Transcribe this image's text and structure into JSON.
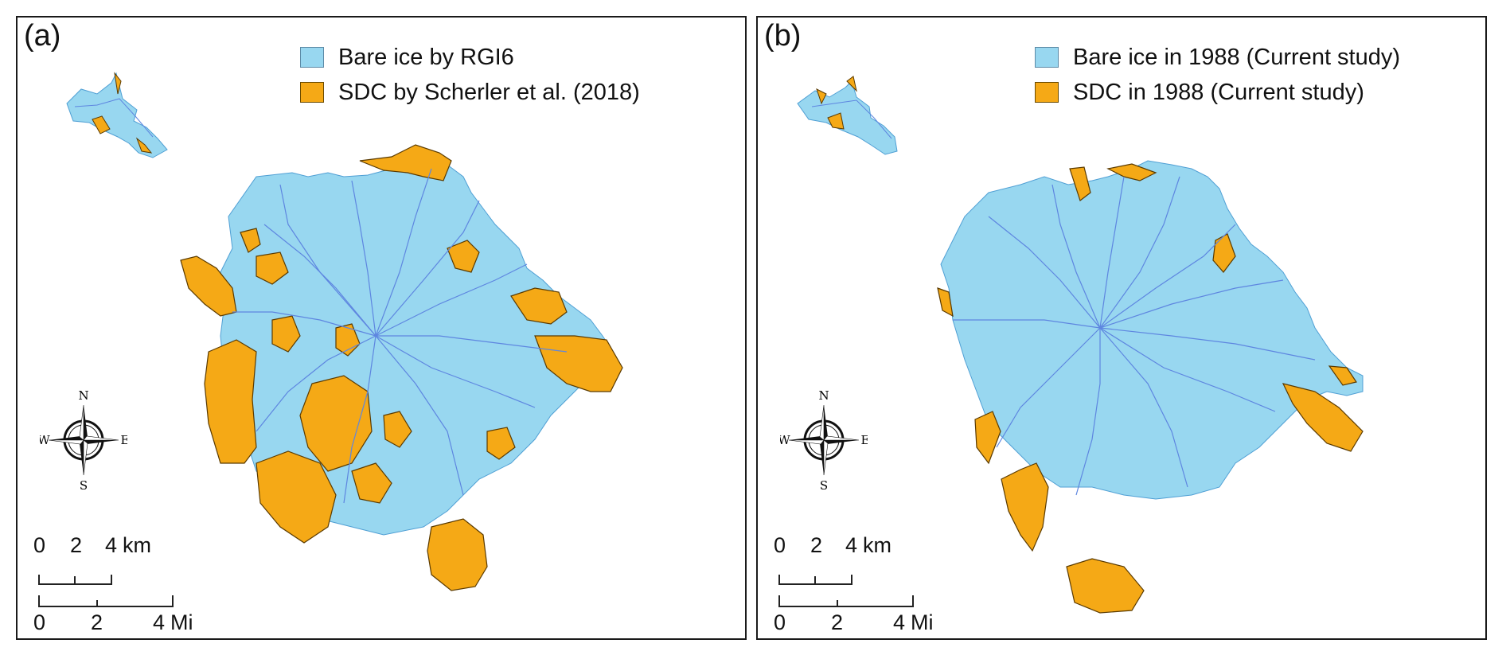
{
  "colors": {
    "bare_ice": "#98d7f0",
    "debris": "#f5a916",
    "flow_line": "#5e86e0",
    "outline_ice": "#4f9fd4",
    "outline_debris": "#5a3a00"
  },
  "panels": [
    {
      "label": "(a)",
      "legend": [
        {
          "text": "Bare ice by RGI6",
          "color": "#98d7f0"
        },
        {
          "text": "SDC by Scherler et al. (2018)",
          "color": "#f5a916"
        }
      ]
    },
    {
      "label": "(b)",
      "legend": [
        {
          "text": "Bare ice in 1988 (Current study)",
          "color": "#98d7f0"
        },
        {
          "text": "SDC in 1988 (Current study)",
          "color": "#f5a916"
        }
      ]
    }
  ],
  "compass": {
    "n": "N",
    "s": "S",
    "e": "E",
    "w": "W",
    "icon": "compass-rose-icon"
  },
  "scale_km": {
    "ticks": [
      "0",
      "2",
      "4"
    ],
    "unit": "km"
  },
  "scale_mi": {
    "ticks": [
      "0",
      "2",
      "4"
    ],
    "unit": "Mi"
  }
}
